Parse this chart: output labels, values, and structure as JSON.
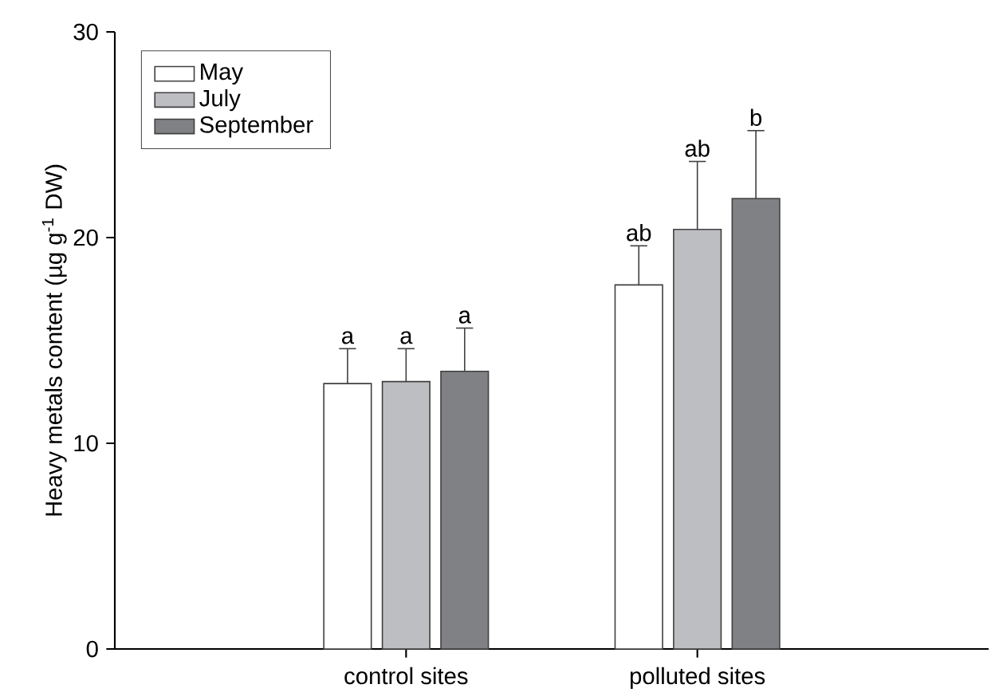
{
  "chart_data": {
    "type": "bar",
    "ylabel": "Heavy metals content (µg g$^{-1}$ DW)",
    "categories": [
      "control sites",
      "polluted sites"
    ],
    "series": [
      {
        "name": "May",
        "color": "#ffffff",
        "values": [
          12.9,
          17.7
        ],
        "errors": [
          1.7,
          1.9
        ]
      },
      {
        "name": "July",
        "color": "#bdbec2",
        "values": [
          13.0,
          20.4
        ],
        "errors": [
          1.6,
          3.3
        ]
      },
      {
        "name": "September",
        "color": "#808184",
        "values": [
          13.5,
          21.9
        ],
        "errors": [
          2.1,
          3.3
        ]
      }
    ],
    "ylim": [
      0,
      30
    ],
    "yticks": [
      0,
      10,
      20,
      30
    ],
    "legend": "top left",
    "grid": false,
    "annotations": [
      "a",
      "a",
      "a",
      "ab",
      "ab",
      "b"
    ]
  }
}
